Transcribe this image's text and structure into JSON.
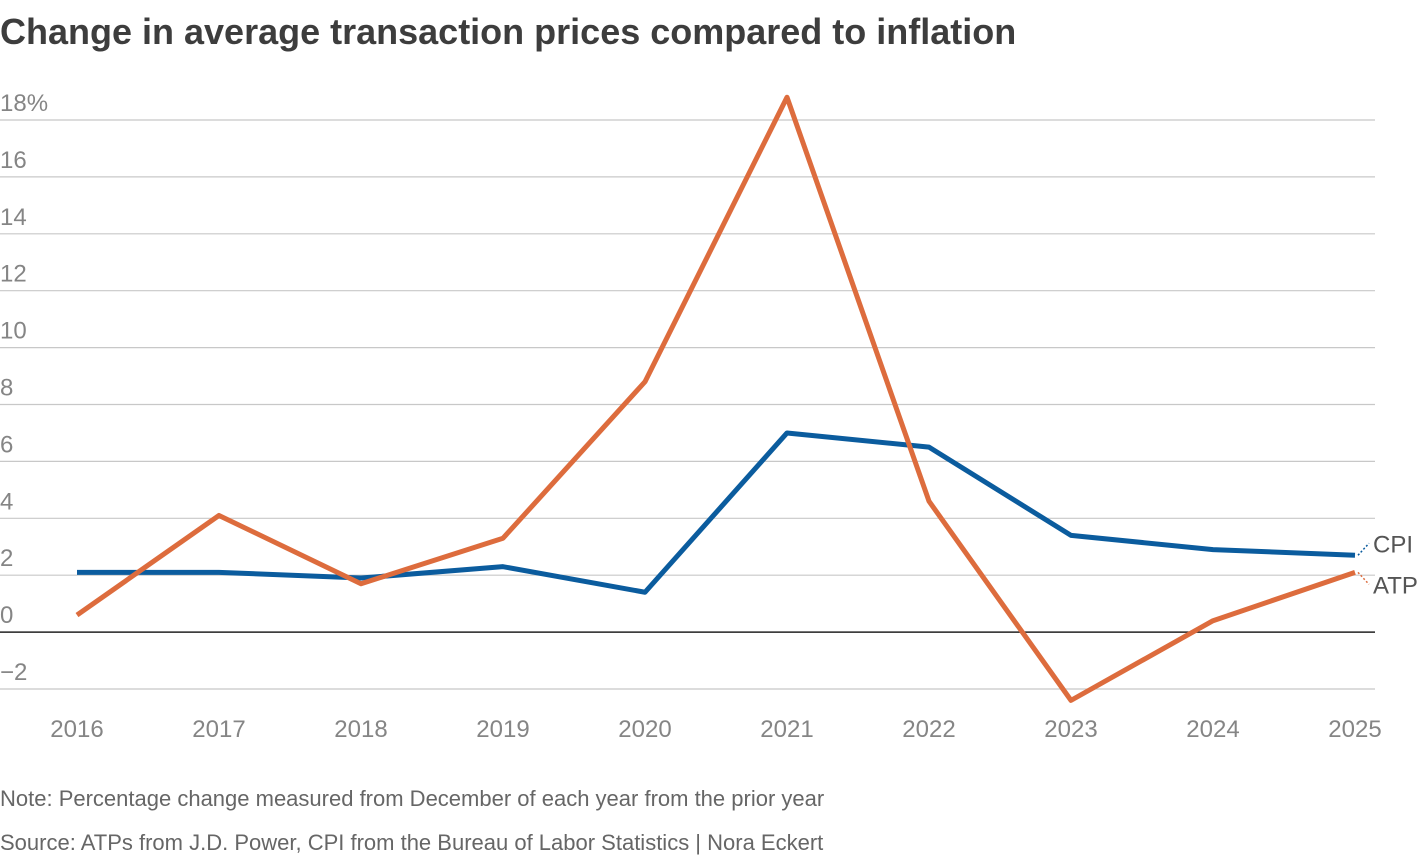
{
  "chart_data": {
    "type": "line",
    "title": "Change in average transaction prices compared to inflation",
    "categories": [
      "2016",
      "2017",
      "2018",
      "2019",
      "2020",
      "2021",
      "2022",
      "2023",
      "2024",
      "2025"
    ],
    "series": [
      {
        "name": "CPI",
        "color": "#0b5c9e",
        "values": [
          2.1,
          2.1,
          1.9,
          2.3,
          1.4,
          7.0,
          6.5,
          3.4,
          2.9,
          2.7
        ]
      },
      {
        "name": "ATP",
        "color": "#dd6c3d",
        "values": [
          0.6,
          4.1,
          1.7,
          3.3,
          8.8,
          18.8,
          4.6,
          -2.4,
          0.4,
          2.1
        ]
      }
    ],
    "ylim": [
      -2,
      18
    ],
    "yticks": [
      {
        "value": -2,
        "label": "−2"
      },
      0,
      2,
      4,
      6,
      8,
      10,
      12,
      14,
      16,
      {
        "value": 18,
        "label": "18%"
      }
    ],
    "grid": true,
    "note": "Note: Percentage change measured from December of each year from the prior year",
    "source": "Source: ATPs from J.D. Power, CPI from the Bureau of Labor Statistics  | Nora Eckert"
  }
}
